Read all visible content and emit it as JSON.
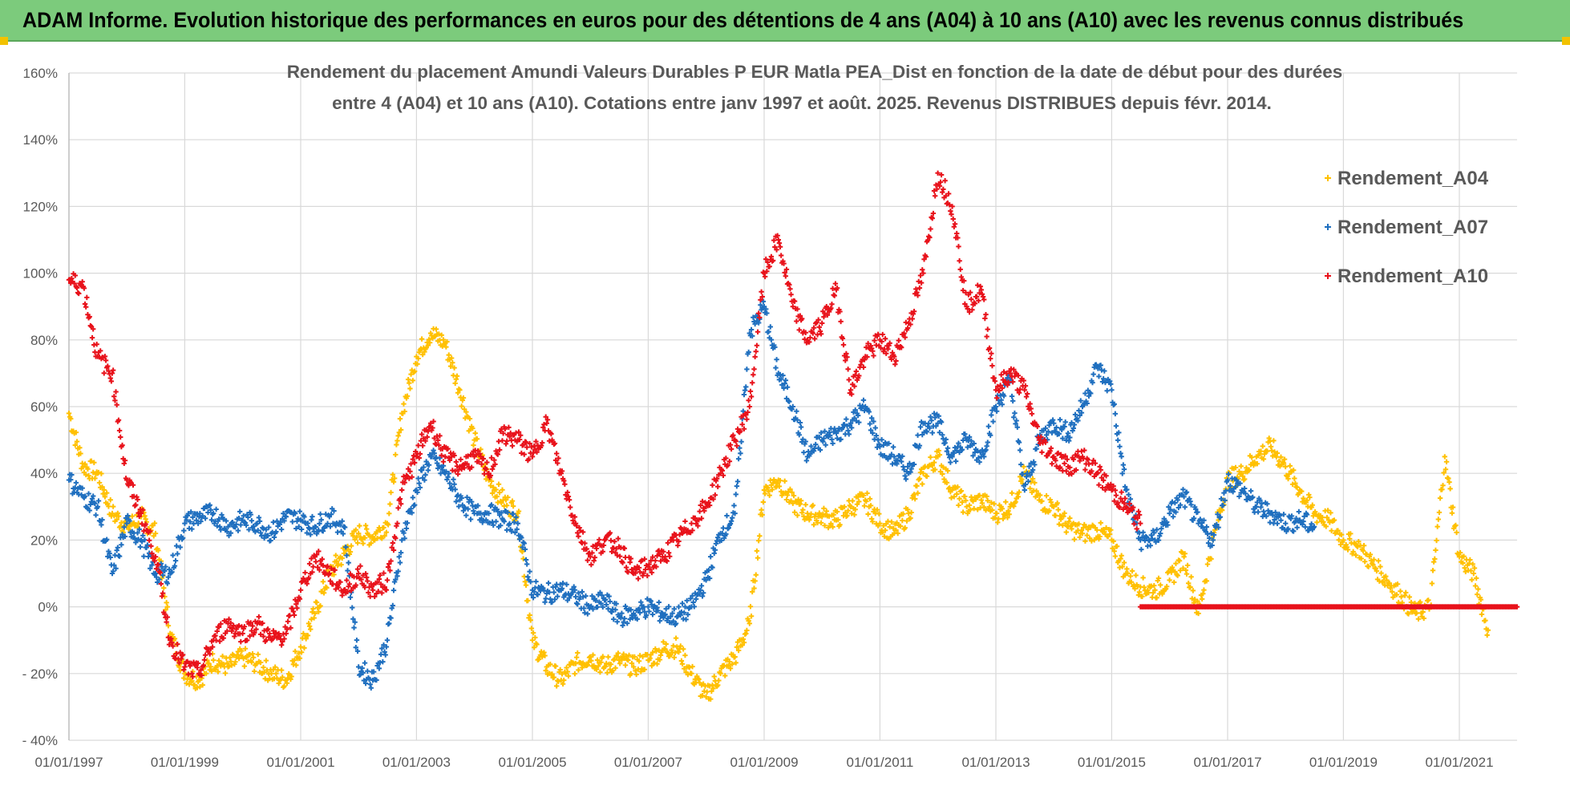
{
  "header": {
    "title": "ADAM Informe. Evolution historique des performances en euros pour des détentions de 4 ans (A04) à 10 ans (A10) avec les revenus connus distribués"
  },
  "chart_data": {
    "type": "scatter",
    "title_line1": "Rendement du placement Amundi Valeurs Durables P EUR Matla PEA_Dist en fonction de la date de début pour des durées",
    "title_line2": "entre 4 (A04) et 10 ans (A10).  Cotations entre janv 1997 et août. 2025. Revenus DISTRIBUES depuis févr. 2014.",
    "xlabel": "",
    "ylabel": "",
    "x_range": [
      "1997-01-01",
      "2021-12-31"
    ],
    "ylim": [
      -40,
      160
    ],
    "y_ticks": [
      -40,
      -20,
      0,
      20,
      40,
      60,
      80,
      100,
      120,
      140,
      160
    ],
    "y_tick_labels": [
      "- 40%",
      "- 20%",
      "0%",
      "20%",
      "40%",
      "60%",
      "80%",
      "100%",
      "120%",
      "140%",
      "160%"
    ],
    "x_tick_labels": [
      "01/01/1997",
      "01/01/1999",
      "01/01/2001",
      "01/01/2003",
      "01/01/2005",
      "01/01/2007",
      "01/01/2009",
      "01/01/2011",
      "01/01/2013",
      "01/01/2015",
      "01/01/2017",
      "01/01/2019",
      "01/01/2021"
    ],
    "x_ticks": [
      "1997-01-01",
      "1999-01-01",
      "2001-01-01",
      "2003-01-01",
      "2005-01-01",
      "2007-01-01",
      "2009-01-01",
      "2011-01-01",
      "2013-01-01",
      "2015-01-01",
      "2017-01-01",
      "2019-01-01",
      "2021-01-01"
    ],
    "grid": true,
    "legend_position": "top-right",
    "series": [
      {
        "name": "Rendement_A04",
        "color": "#ffc000",
        "x": [
          "1997-01-01",
          "1997-04-01",
          "1997-07-01",
          "1997-10-01",
          "1998-01-01",
          "1998-04-01",
          "1998-07-01",
          "1998-10-01",
          "1999-01-01",
          "1999-04-01",
          "1999-07-01",
          "1999-10-01",
          "2000-01-01",
          "2000-04-01",
          "2000-07-01",
          "2000-10-01",
          "2001-01-01",
          "2001-04-01",
          "2001-07-01",
          "2001-10-01",
          "2002-01-01",
          "2002-04-01",
          "2002-07-01",
          "2002-10-01",
          "2003-01-01",
          "2003-04-01",
          "2003-07-01",
          "2003-10-01",
          "2004-01-01",
          "2004-04-01",
          "2004-07-01",
          "2004-10-01",
          "2005-01-01",
          "2005-04-01",
          "2005-07-01",
          "2005-10-01",
          "2006-01-01",
          "2006-04-01",
          "2006-07-01",
          "2006-10-01",
          "2007-01-01",
          "2007-04-01",
          "2007-07-01",
          "2007-10-01",
          "2008-01-01",
          "2008-04-01",
          "2008-07-01",
          "2008-10-01",
          "2009-01-01",
          "2009-04-01",
          "2009-07-01",
          "2009-10-01",
          "2010-01-01",
          "2010-04-01",
          "2010-07-01",
          "2010-10-01",
          "2011-01-01",
          "2011-04-01",
          "2011-07-01",
          "2011-10-01",
          "2012-01-01",
          "2012-04-01",
          "2012-07-01",
          "2012-10-01",
          "2013-01-01",
          "2013-04-01",
          "2013-07-01",
          "2013-10-01",
          "2014-01-01",
          "2014-04-01",
          "2014-07-01",
          "2014-10-01",
          "2015-01-01",
          "2015-04-01",
          "2015-07-01",
          "2015-10-01",
          "2016-01-01",
          "2016-04-01",
          "2016-07-01",
          "2016-10-01",
          "2017-01-01",
          "2017-04-01",
          "2017-07-01",
          "2017-10-01",
          "2018-01-01",
          "2018-04-01",
          "2018-07-01",
          "2018-10-01",
          "2019-01-01",
          "2019-04-01",
          "2019-07-01",
          "2019-10-01",
          "2020-01-01",
          "2020-04-01",
          "2020-07-01",
          "2020-10-01",
          "2021-01-01",
          "2021-04-01",
          "2021-07-01"
        ],
        "y": [
          58,
          42,
          40,
          28,
          24,
          27,
          22,
          -8,
          -20,
          -22,
          -16,
          -18,
          -15,
          -17,
          -20,
          -22,
          -12,
          -2,
          10,
          16,
          22,
          21,
          25,
          58,
          75,
          82,
          79,
          65,
          50,
          38,
          32,
          28,
          -10,
          -18,
          -22,
          -17,
          -15,
          -18,
          -16,
          -18,
          -16,
          -13,
          -12,
          -20,
          -27,
          -20,
          -15,
          -5,
          35,
          38,
          31,
          28,
          27,
          26,
          30,
          32,
          25,
          22,
          28,
          40,
          45,
          35,
          30,
          32,
          28,
          30,
          40,
          32,
          30,
          24,
          22,
          23,
          20,
          10,
          6,
          5,
          8,
          15,
          -2,
          20,
          38,
          40,
          45,
          48,
          42,
          35,
          28,
          26,
          20,
          18,
          13,
          8,
          3,
          -2,
          0,
          45,
          15,
          10,
          -7
        ]
      },
      {
        "name": "Rendement_A07",
        "color": "#1f6fbf",
        "x": [
          "1997-01-01",
          "1997-04-01",
          "1997-07-01",
          "1997-10-01",
          "1998-01-01",
          "1998-04-01",
          "1998-07-01",
          "1998-10-01",
          "1999-01-01",
          "1999-04-01",
          "1999-07-01",
          "1999-10-01",
          "2000-01-01",
          "2000-04-01",
          "2000-07-01",
          "2000-10-01",
          "2001-01-01",
          "2001-04-01",
          "2001-07-01",
          "2001-10-01",
          "2002-01-01",
          "2002-04-01",
          "2002-07-01",
          "2002-10-01",
          "2003-01-01",
          "2003-04-01",
          "2003-07-01",
          "2003-10-01",
          "2004-01-01",
          "2004-04-01",
          "2004-07-01",
          "2004-10-01",
          "2005-01-01",
          "2005-04-01",
          "2005-07-01",
          "2005-10-01",
          "2006-01-01",
          "2006-04-01",
          "2006-07-01",
          "2006-10-01",
          "2007-01-01",
          "2007-04-01",
          "2007-07-01",
          "2007-10-01",
          "2008-01-01",
          "2008-04-01",
          "2008-07-01",
          "2008-10-01",
          "2009-01-01",
          "2009-04-01",
          "2009-07-01",
          "2009-10-01",
          "2010-01-01",
          "2010-04-01",
          "2010-07-01",
          "2010-10-01",
          "2011-01-01",
          "2011-04-01",
          "2011-07-01",
          "2011-10-01",
          "2012-01-01",
          "2012-04-01",
          "2012-07-01",
          "2012-10-01",
          "2013-01-01",
          "2013-04-01",
          "2013-07-01",
          "2013-10-01",
          "2014-01-01",
          "2014-04-01",
          "2014-07-01",
          "2014-10-01",
          "2015-01-01",
          "2015-04-01",
          "2015-07-01",
          "2015-10-01",
          "2016-01-01",
          "2016-04-01",
          "2016-07-01",
          "2016-10-01",
          "2017-01-01",
          "2017-04-01",
          "2017-07-01",
          "2017-10-01",
          "2018-01-01",
          "2018-04-01",
          "2018-07-01"
        ],
        "y": [
          38,
          33,
          30,
          10,
          25,
          20,
          10,
          10,
          25,
          27,
          28,
          24,
          26,
          25,
          22,
          27,
          26,
          24,
          27,
          24,
          -18,
          -22,
          -10,
          20,
          35,
          45,
          40,
          32,
          28,
          28,
          26,
          25,
          5,
          4,
          5,
          3,
          0,
          2,
          -3,
          -2,
          0,
          -2,
          -3,
          0,
          8,
          22,
          28,
          82,
          90,
          70,
          60,
          45,
          50,
          52,
          55,
          60,
          48,
          45,
          40,
          55,
          55,
          45,
          50,
          45,
          60,
          68,
          35,
          50,
          55,
          52,
          60,
          72,
          65,
          35,
          20,
          20,
          28,
          33,
          25,
          20,
          38,
          35,
          30,
          28,
          25,
          26,
          24
        ]
      },
      {
        "name": "Rendement_A10",
        "color": "#e8121b",
        "x": [
          "1997-01-01",
          "1997-04-01",
          "1997-07-01",
          "1997-10-01",
          "1998-01-01",
          "1998-04-01",
          "1998-07-01",
          "1998-10-01",
          "1999-01-01",
          "1999-04-01",
          "1999-07-01",
          "1999-10-01",
          "2000-01-01",
          "2000-04-01",
          "2000-07-01",
          "2000-10-01",
          "2001-01-01",
          "2001-04-01",
          "2001-07-01",
          "2001-10-01",
          "2002-01-01",
          "2002-04-01",
          "2002-07-01",
          "2002-10-01",
          "2003-01-01",
          "2003-04-01",
          "2003-07-01",
          "2003-10-01",
          "2004-01-01",
          "2004-04-01",
          "2004-07-01",
          "2004-10-01",
          "2005-01-01",
          "2005-04-01",
          "2005-07-01",
          "2005-10-01",
          "2006-01-01",
          "2006-04-01",
          "2006-07-01",
          "2006-10-01",
          "2007-01-01",
          "2007-04-01",
          "2007-07-01",
          "2007-10-01",
          "2008-01-01",
          "2008-04-01",
          "2008-07-01",
          "2008-10-01",
          "2009-01-01",
          "2009-04-01",
          "2009-07-01",
          "2009-10-01",
          "2010-01-01",
          "2010-04-01",
          "2010-07-01",
          "2010-10-01",
          "2011-01-01",
          "2011-04-01",
          "2011-07-01",
          "2011-10-01",
          "2012-01-01",
          "2012-04-01",
          "2012-07-01",
          "2012-10-01",
          "2013-01-01",
          "2013-04-01",
          "2013-07-01",
          "2013-10-01",
          "2014-01-01",
          "2014-04-01",
          "2014-07-01",
          "2014-10-01",
          "2015-01-01",
          "2015-04-01",
          "2015-07-01"
        ],
        "y": [
          98,
          96,
          75,
          70,
          38,
          28,
          15,
          -10,
          -18,
          -20,
          -10,
          -5,
          -8,
          -5,
          -10,
          -8,
          5,
          15,
          10,
          5,
          10,
          5,
          8,
          35,
          45,
          55,
          45,
          42,
          45,
          40,
          52,
          50,
          45,
          55,
          40,
          25,
          15,
          20,
          18,
          10,
          12,
          15,
          20,
          25,
          30,
          40,
          50,
          60,
          100,
          110,
          90,
          80,
          85,
          95,
          65,
          75,
          80,
          75,
          85,
          100,
          130,
          120,
          90,
          95,
          65,
          70,
          65,
          50,
          45,
          42,
          45,
          40,
          35,
          30,
          25
        ]
      },
      {
        "name": "",
        "color": "#e8121b",
        "x": [
          "2015-07-01",
          "2016-01-01",
          "2016-07-01",
          "2017-01-01",
          "2017-07-01",
          "2018-01-01",
          "2018-07-01",
          "2019-01-01",
          "2019-07-01",
          "2020-01-01",
          "2020-07-01",
          "2021-01-01",
          "2021-07-01",
          "2021-12-31"
        ],
        "y": [
          0,
          0,
          0,
          0,
          0,
          0,
          0,
          0,
          0,
          0,
          0,
          0,
          0,
          0
        ]
      }
    ]
  }
}
